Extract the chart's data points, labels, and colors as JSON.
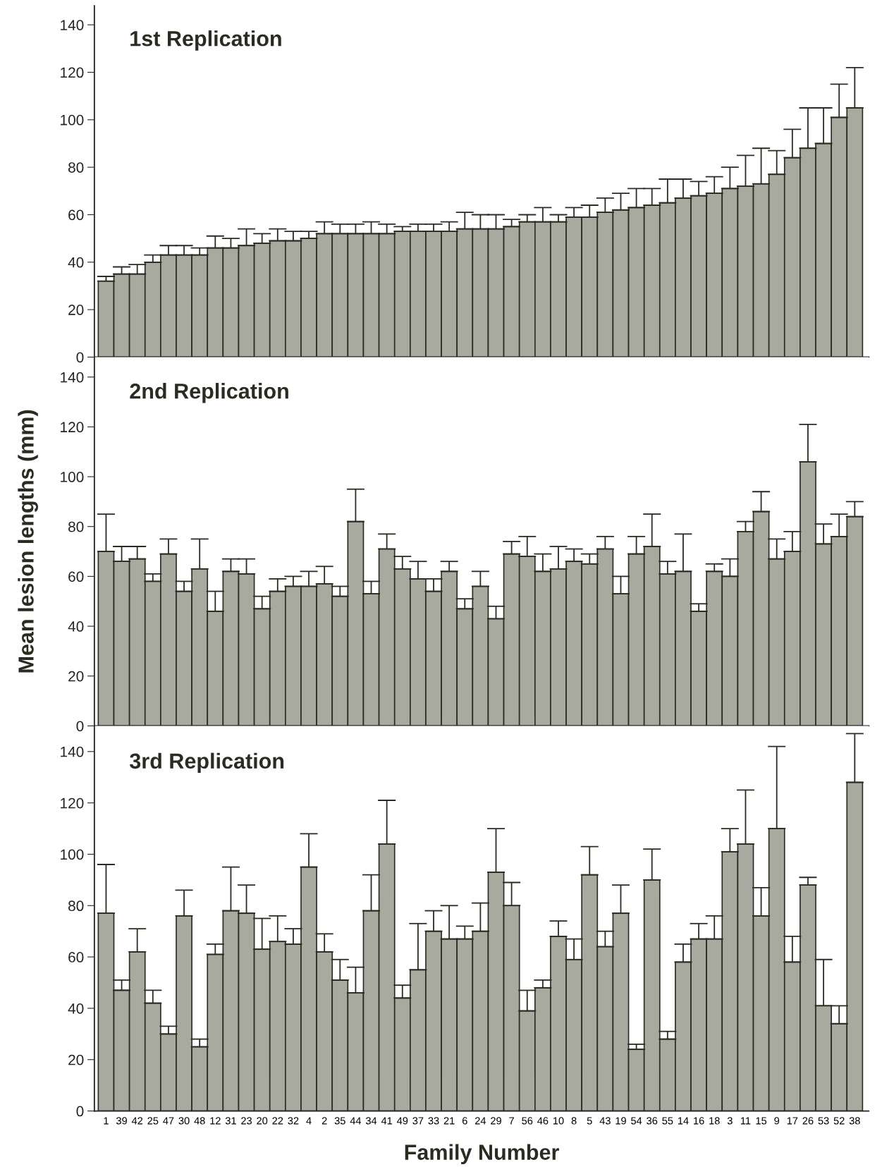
{
  "chart_data": [
    {
      "type": "bar",
      "title": "1st Replication",
      "tick_labels": "y",
      "color": "#a8aa9f",
      "ylim": [
        0,
        148
      ],
      "yticks": [
        0,
        20,
        40,
        60,
        80,
        100,
        120,
        140
      ],
      "categories": [
        "1",
        "39",
        "42",
        "25",
        "47",
        "30",
        "48",
        "12",
        "31",
        "23",
        "20",
        "22",
        "32",
        "4",
        "2",
        "35",
        "44",
        "34",
        "41",
        "49",
        "37",
        "33",
        "21",
        "6",
        "24",
        "29",
        "7",
        "56",
        "46",
        "10",
        "8",
        "5",
        "43",
        "19",
        "54",
        "36",
        "55",
        "14",
        "16",
        "18",
        "3",
        "11",
        "15",
        "9",
        "17",
        "26",
        "53",
        "52",
        "38"
      ],
      "values": [
        32,
        35,
        35,
        40,
        43,
        43,
        43,
        46,
        46,
        47,
        48,
        49,
        49,
        50,
        52,
        52,
        52,
        52,
        52,
        53,
        53,
        53,
        53,
        54,
        54,
        54,
        55,
        57,
        57,
        57,
        59,
        59,
        61,
        62,
        63,
        64,
        65,
        67,
        68,
        69,
        71,
        72,
        73,
        77,
        84,
        88,
        90,
        101,
        105
      ],
      "errors": [
        [
          32,
          34
        ],
        [
          35,
          38
        ],
        [
          35,
          39
        ],
        [
          40,
          43
        ],
        [
          43,
          47
        ],
        [
          43,
          47
        ],
        [
          43,
          46
        ],
        [
          46,
          51
        ],
        [
          46,
          50
        ],
        [
          47,
          54
        ],
        [
          48,
          52
        ],
        [
          49,
          54
        ],
        [
          49,
          53
        ],
        [
          50,
          53
        ],
        [
          52,
          57
        ],
        [
          52,
          56
        ],
        [
          52,
          56
        ],
        [
          52,
          57
        ],
        [
          52,
          56
        ],
        [
          53,
          55
        ],
        [
          53,
          56
        ],
        [
          53,
          56
        ],
        [
          53,
          57
        ],
        [
          54,
          61
        ],
        [
          54,
          60
        ],
        [
          54,
          60
        ],
        [
          55,
          58
        ],
        [
          57,
          60
        ],
        [
          57,
          63
        ],
        [
          57,
          60
        ],
        [
          59,
          63
        ],
        [
          59,
          64
        ],
        [
          61,
          67
        ],
        [
          62,
          69
        ],
        [
          63,
          71
        ],
        [
          64,
          71
        ],
        [
          65,
          75
        ],
        [
          67,
          75
        ],
        [
          68,
          74
        ],
        [
          69,
          76
        ],
        [
          71,
          80
        ],
        [
          72,
          85
        ],
        [
          73,
          88
        ],
        [
          77,
          87
        ],
        [
          84,
          96
        ],
        [
          88,
          105
        ],
        [
          90,
          105
        ],
        [
          101,
          115
        ],
        [
          105,
          122
        ]
      ]
    },
    {
      "type": "bar",
      "title": "2nd Replication",
      "ylabel": "Mean lesion lengths (mm)",
      "tick_labels": "y",
      "color": "#a8aa9f",
      "ylim": [
        0,
        148
      ],
      "yticks": [
        0,
        20,
        40,
        60,
        80,
        100,
        120,
        140
      ],
      "categories": [
        "1",
        "39",
        "42",
        "25",
        "47",
        "30",
        "48",
        "12",
        "31",
        "23",
        "20",
        "22",
        "32",
        "4",
        "2",
        "35",
        "44",
        "34",
        "41",
        "49",
        "37",
        "33",
        "21",
        "6",
        "24",
        "29",
        "7",
        "56",
        "46",
        "10",
        "8",
        "5",
        "43",
        "19",
        "54",
        "36",
        "55",
        "14",
        "16",
        "18",
        "3",
        "11",
        "15",
        "9",
        "17",
        "26",
        "53",
        "52",
        "38"
      ],
      "values": [
        70,
        66,
        67,
        58,
        69,
        54,
        63,
        46,
        62,
        61,
        47,
        54,
        56,
        56,
        57,
        52,
        82,
        53,
        71,
        63,
        59,
        54,
        62,
        47,
        56,
        43,
        69,
        68,
        62,
        63,
        66,
        65,
        71,
        53,
        69,
        72,
        61,
        62,
        46,
        62,
        60,
        78,
        86,
        67,
        70,
        106,
        73,
        76,
        84
      ],
      "errors": [
        [
          70,
          85
        ],
        [
          66,
          72
        ],
        [
          67,
          72
        ],
        [
          58,
          61
        ],
        [
          69,
          75
        ],
        [
          54,
          58
        ],
        [
          63,
          75
        ],
        [
          46,
          54
        ],
        [
          62,
          67
        ],
        [
          61,
          67
        ],
        [
          47,
          52
        ],
        [
          54,
          59
        ],
        [
          56,
          60
        ],
        [
          56,
          62
        ],
        [
          57,
          64
        ],
        [
          52,
          56
        ],
        [
          82,
          95
        ],
        [
          53,
          58
        ],
        [
          71,
          77
        ],
        [
          63,
          68
        ],
        [
          59,
          66
        ],
        [
          54,
          59
        ],
        [
          62,
          66
        ],
        [
          47,
          51
        ],
        [
          56,
          62
        ],
        [
          43,
          48
        ],
        [
          69,
          74
        ],
        [
          68,
          76
        ],
        [
          62,
          69
        ],
        [
          63,
          72
        ],
        [
          66,
          71
        ],
        [
          65,
          69
        ],
        [
          71,
          76
        ],
        [
          53,
          60
        ],
        [
          69,
          76
        ],
        [
          72,
          85
        ],
        [
          61,
          66
        ],
        [
          62,
          77
        ],
        [
          46,
          49
        ],
        [
          62,
          65
        ],
        [
          60,
          67
        ],
        [
          78,
          82
        ],
        [
          86,
          94
        ],
        [
          67,
          75
        ],
        [
          70,
          78
        ],
        [
          106,
          121
        ],
        [
          73,
          81
        ],
        [
          76,
          85
        ],
        [
          84,
          90
        ]
      ]
    },
    {
      "type": "bar",
      "title": "3rd Replication",
      "xlabel": "Family Number",
      "color": "#a8aa9f",
      "ylim": [
        0,
        150
      ],
      "yticks": [
        0,
        20,
        40,
        60,
        80,
        100,
        120,
        140
      ],
      "categories": [
        "1",
        "39",
        "42",
        "25",
        "47",
        "30",
        "48",
        "12",
        "31",
        "23",
        "20",
        "22",
        "32",
        "4",
        "2",
        "35",
        "44",
        "34",
        "41",
        "49",
        "37",
        "33",
        "21",
        "6",
        "24",
        "29",
        "7",
        "56",
        "46",
        "10",
        "8",
        "5",
        "43",
        "19",
        "54",
        "36",
        "55",
        "14",
        "16",
        "18",
        "3",
        "11",
        "15",
        "9",
        "17",
        "26",
        "53",
        "52",
        "38"
      ],
      "values": [
        77,
        47,
        62,
        42,
        30,
        76,
        25,
        61,
        78,
        77,
        63,
        66,
        65,
        95,
        62,
        51,
        46,
        78,
        104,
        44,
        55,
        70,
        67,
        67,
        70,
        93,
        80,
        39,
        48,
        68,
        59,
        92,
        64,
        77,
        24,
        90,
        28,
        58,
        67,
        67,
        101,
        104,
        76,
        110,
        58,
        88,
        41,
        34,
        128
      ],
      "errors": [
        [
          77,
          96
        ],
        [
          47,
          51
        ],
        [
          62,
          71
        ],
        [
          42,
          47
        ],
        [
          30,
          33
        ],
        [
          76,
          86
        ],
        [
          25,
          28
        ],
        [
          61,
          65
        ],
        [
          78,
          95
        ],
        [
          77,
          88
        ],
        [
          63,
          75
        ],
        [
          66,
          76
        ],
        [
          65,
          71
        ],
        [
          95,
          108
        ],
        [
          62,
          69
        ],
        [
          51,
          59
        ],
        [
          46,
          56
        ],
        [
          78,
          92
        ],
        [
          104,
          121
        ],
        [
          44,
          49
        ],
        [
          55,
          73
        ],
        [
          70,
          78
        ],
        [
          67,
          80
        ],
        [
          67,
          72
        ],
        [
          70,
          81
        ],
        [
          93,
          110
        ],
        [
          80,
          89
        ],
        [
          39,
          47
        ],
        [
          48,
          51
        ],
        [
          68,
          74
        ],
        [
          59,
          67
        ],
        [
          92,
          103
        ],
        [
          64,
          70
        ],
        [
          77,
          88
        ],
        [
          24,
          26
        ],
        [
          90,
          102
        ],
        [
          28,
          31
        ],
        [
          58,
          65
        ],
        [
          67,
          73
        ],
        [
          67,
          76
        ],
        [
          101,
          110
        ],
        [
          104,
          125
        ],
        [
          76,
          87
        ],
        [
          110,
          142
        ],
        [
          58,
          68
        ],
        [
          88,
          91
        ],
        [
          41,
          59
        ],
        [
          34,
          41
        ],
        [
          128,
          147
        ]
      ]
    }
  ]
}
